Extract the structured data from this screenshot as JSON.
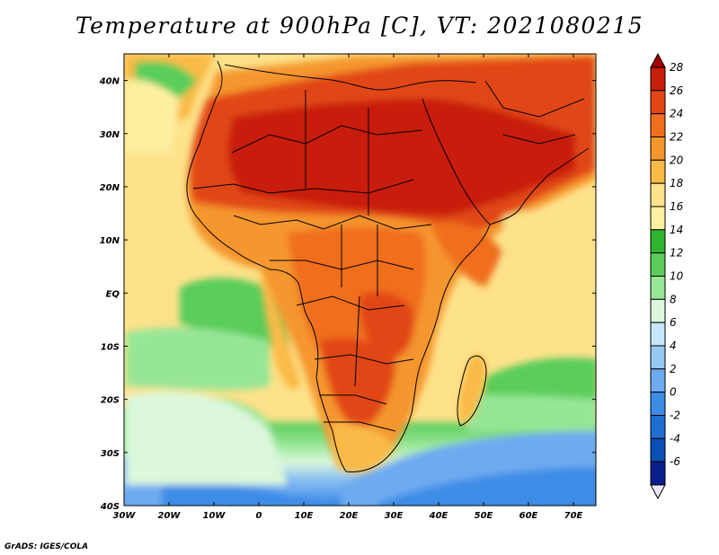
{
  "title": "Temperature at 900hPa [C], VT: 2021080215",
  "credit": "GrADS: IGES/COLA",
  "map": {
    "lon_labels": [
      "30W",
      "20W",
      "10W",
      "0",
      "10E",
      "20E",
      "30E",
      "40E",
      "50E",
      "60E",
      "70E"
    ],
    "lat_labels": [
      "40N",
      "30N",
      "20N",
      "10N",
      "EQ",
      "10S",
      "20S",
      "30S",
      "40S"
    ]
  },
  "colorbar": {
    "levels": [
      "28",
      "26",
      "24",
      "22",
      "20",
      "18",
      "16",
      "14",
      "12",
      "10",
      "8",
      "6",
      "4",
      "2",
      "0",
      "-2",
      "-4",
      "-6"
    ],
    "colors": [
      "#a50000",
      "#c81e0a",
      "#e14614",
      "#f06e1e",
      "#f5962d",
      "#faba46",
      "#fde28a",
      "#fdf0a0",
      "#2fb42f",
      "#5acd5a",
      "#96e696",
      "#dcf8dc",
      "#c8e6fa",
      "#96c8f0",
      "#6eaaf0",
      "#3c8ce6",
      "#1e6ed2",
      "#0a50b4",
      "#0a1e8c"
    ]
  }
}
